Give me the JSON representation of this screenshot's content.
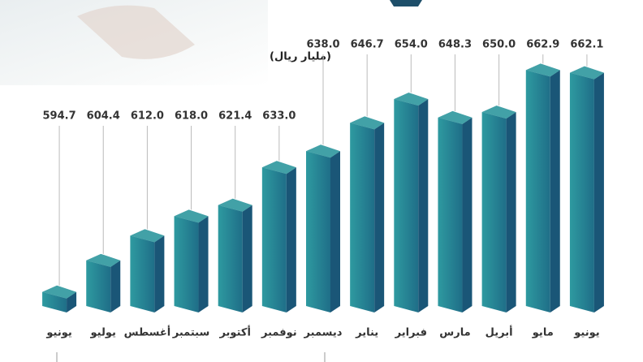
{
  "chart_data": {
    "type": "bar",
    "unit": "(مليار ريال)",
    "categories": [
      "يونيو",
      "يوليو",
      "أغسطس",
      "سبتمبر",
      "أكتوبر",
      "نوفمبر",
      "ديسمبر",
      "يناير",
      "فبراير",
      "مارس",
      "أبريل",
      "مايو",
      "يونيو"
    ],
    "values": [
      594.7,
      604.4,
      612.0,
      618.0,
      621.4,
      633.0,
      638.0,
      646.7,
      654.0,
      648.3,
      650.0,
      662.9,
      662.1
    ],
    "value_labels": [
      "594.7",
      "604.4",
      "612.0",
      "618.0",
      "621.4",
      "633.0",
      "638.0",
      "646.7",
      "654.0",
      "648.3",
      "650.0",
      "662.9",
      "662.1"
    ],
    "color": "#24808f",
    "ylim": [
      588.4,
      666
    ]
  }
}
